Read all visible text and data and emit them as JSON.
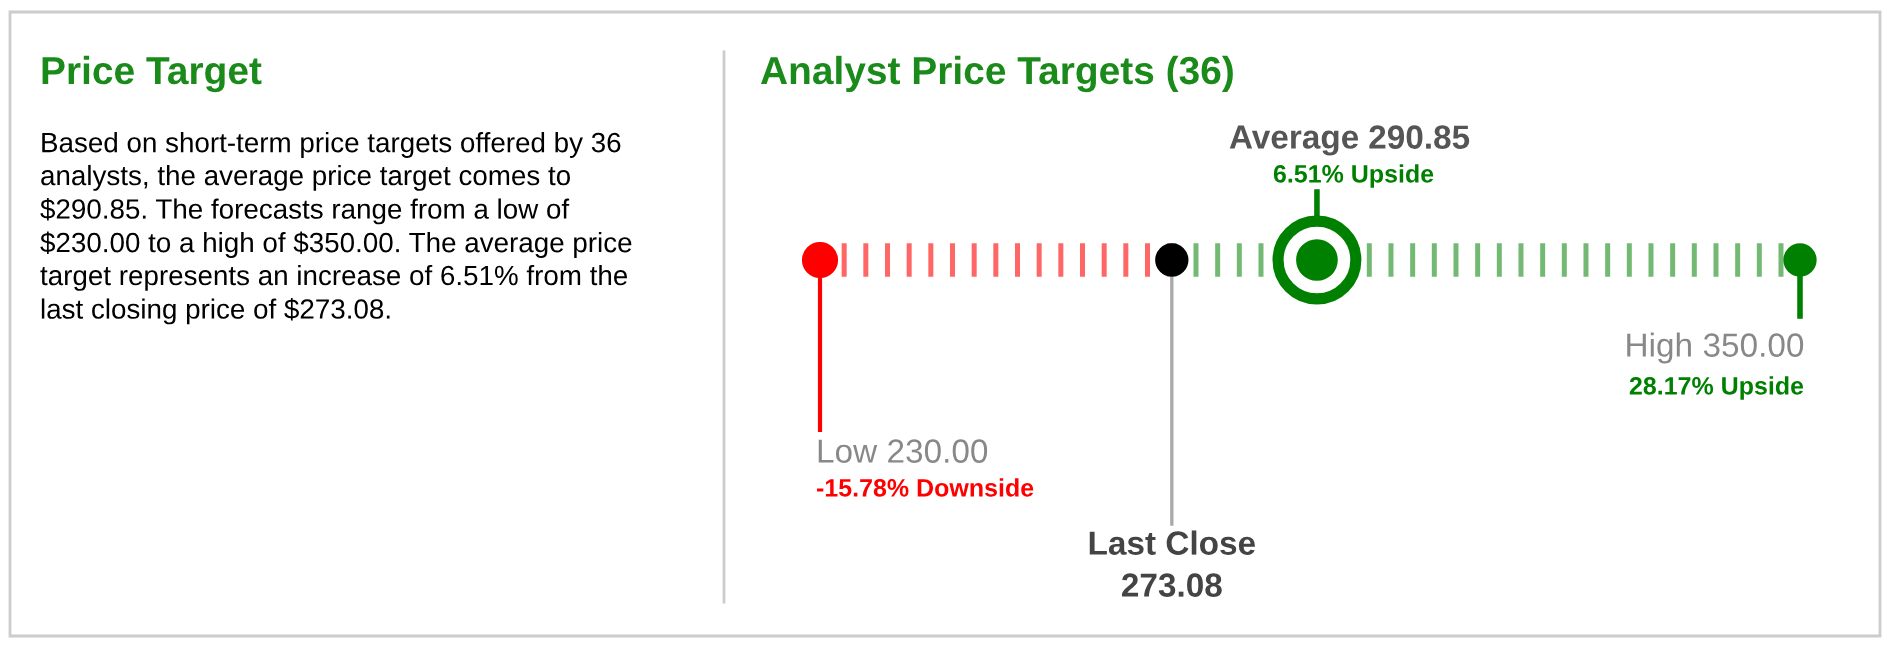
{
  "chart_data": [
    {
      "type": "other",
      "title": "Price Target",
      "annotations": [
        "Based on short-term price targets offered by 36\nanalysts, the average price target comes to\n$290.85. The forecasts range from a low of\n$230.00 to a high of $350.00. The average price\ntarget represents an increase of 6.51% from the\nlast closing price of $273.08."
      ]
    },
    {
      "type": "other",
      "title": "Analyst Price Targets (36)",
      "categories": [
        "Low",
        "Last Close",
        "Average",
        "High"
      ],
      "values": [
        230.0,
        273.08,
        290.85,
        350.0
      ],
      "value_labels": [
        "230.00",
        "273.08",
        "290.85",
        "350.00"
      ],
      "colors": [
        "#ff0000",
        "#000000",
        "#008000",
        "#008000"
      ],
      "annotations": [
        "-15.78% Downside",
        "6.51% Upside",
        "28.17% Upside"
      ]
    }
  ]
}
